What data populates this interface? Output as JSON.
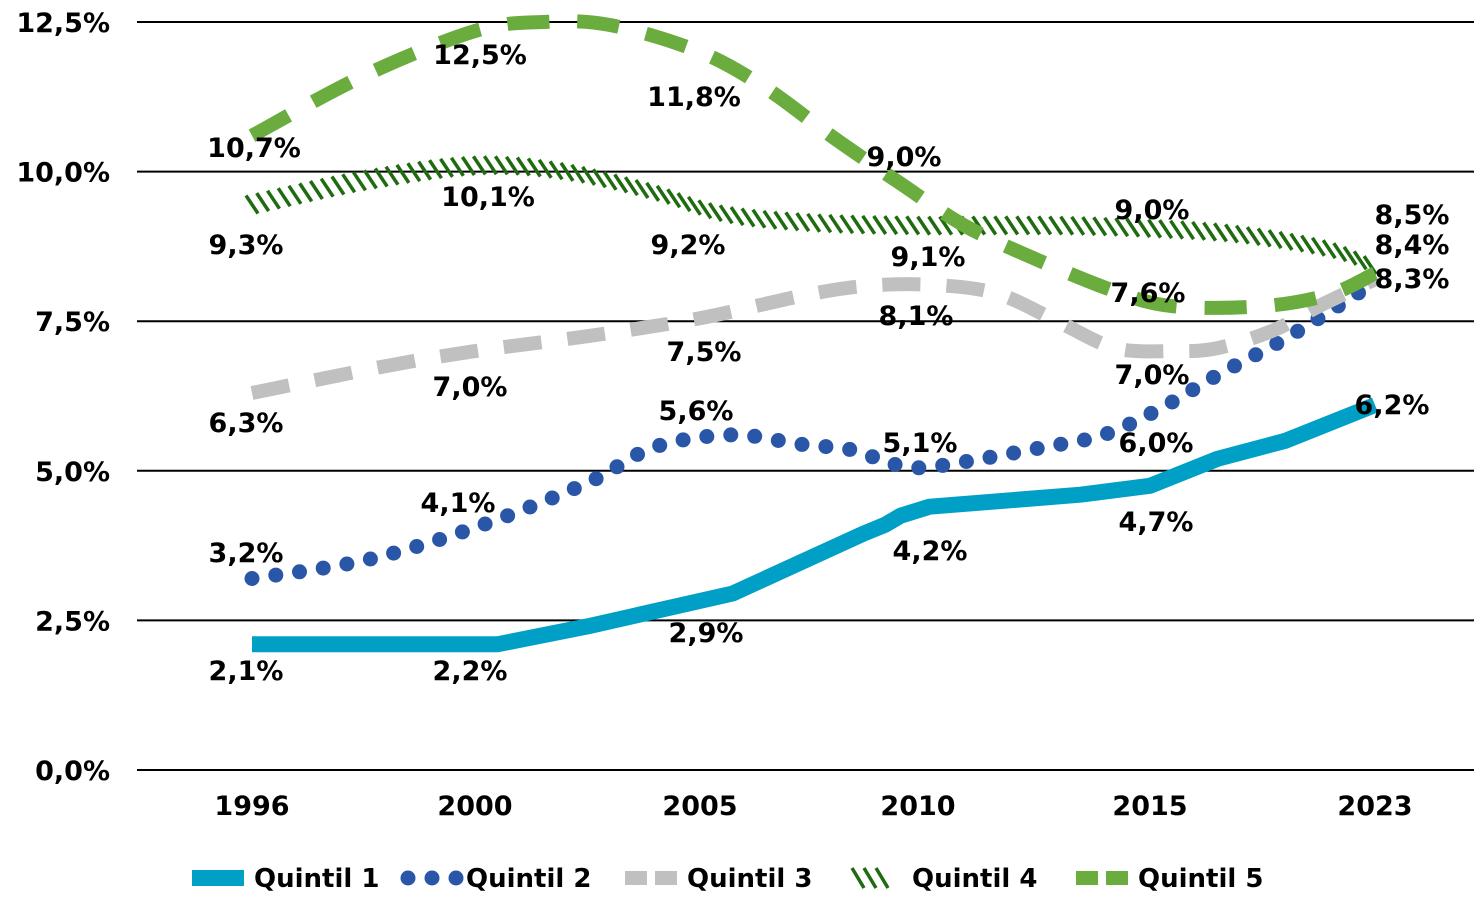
{
  "chart_data": {
    "type": "line",
    "title": "",
    "xlabel": "",
    "ylabel": "",
    "categories": [
      "1996",
      "2000",
      "2005",
      "2010",
      "2015",
      "2023"
    ],
    "ylim": [
      0,
      12.5
    ],
    "yticks": [
      "0,0%",
      "2,5%",
      "5,0%",
      "7,5%",
      "10,0%",
      "12,5%"
    ],
    "ytick_values": [
      0,
      2.5,
      5,
      7.5,
      10,
      12.5
    ],
    "grid": true,
    "legend_position": "bottom",
    "series": [
      {
        "name": "Quintil 1",
        "style": "solid",
        "color": "#00A0C6",
        "values": [
          2.1,
          2.2,
          2.9,
          4.2,
          4.7,
          6.2
        ],
        "labels": [
          "2,1%",
          "2,2%",
          "2,9%",
          "4,2%",
          "4,7%",
          "6,2%"
        ],
        "shape": [
          [
            0,
            2.1
          ],
          [
            1.1,
            2.1
          ],
          [
            1.5,
            2.4
          ],
          [
            2.15,
            2.95
          ],
          [
            2.75,
            3.95
          ],
          [
            2.85,
            4.1
          ],
          [
            2.92,
            4.25
          ],
          [
            3.05,
            4.4
          ],
          [
            3.7,
            4.6
          ],
          [
            4.0,
            4.75
          ],
          [
            4.3,
            5.2
          ],
          [
            4.6,
            5.5
          ],
          [
            5.0,
            6.1
          ]
        ],
        "label_offsets": [
          [
            0,
            1
          ],
          [
            0,
            1
          ],
          [
            0,
            1
          ],
          [
            0,
            1
          ],
          [
            0,
            1
          ],
          [
            0.2,
            0
          ]
        ]
      },
      {
        "name": "Quintil 2",
        "style": "dotted",
        "color": "#2A56A8",
        "values": [
          3.2,
          4.1,
          5.6,
          5.1,
          6.0,
          8.3
        ],
        "labels": [
          "3,2%",
          "4,1%",
          "5,6%",
          "5,1%",
          "6,0%",
          "8,3%"
        ],
        "shape": [
          [
            0,
            3.2
          ],
          [
            0.5,
            3.5
          ],
          [
            1.0,
            4.05
          ],
          [
            1.5,
            4.8
          ],
          [
            1.8,
            5.4
          ],
          [
            2.15,
            5.6
          ],
          [
            2.45,
            5.45
          ],
          [
            2.7,
            5.35
          ],
          [
            2.85,
            5.15
          ],
          [
            3.0,
            5.05
          ],
          [
            3.2,
            5.15
          ],
          [
            3.55,
            5.4
          ],
          [
            3.8,
            5.6
          ],
          [
            4.05,
            6.05
          ],
          [
            4.3,
            6.6
          ],
          [
            4.55,
            7.1
          ],
          [
            4.75,
            7.55
          ],
          [
            5.0,
            8.15
          ]
        ],
        "label_offsets": [
          [
            0,
            -1
          ],
          [
            0,
            -1
          ],
          [
            0,
            -1
          ],
          [
            0,
            -1
          ],
          [
            0,
            1
          ],
          [
            0.2,
            0
          ]
        ]
      },
      {
        "name": "Quintil 3",
        "style": "dashed",
        "color": "#C0C0C0",
        "values": [
          6.3,
          7.0,
          7.5,
          8.1,
          7.0,
          8.4
        ],
        "labels": [
          "6,3%",
          "7,0%",
          "7,5%",
          "8,1%",
          "7,0%",
          "8,4%"
        ],
        "shape": [
          [
            0,
            6.3
          ],
          [
            0.6,
            6.75
          ],
          [
            1.0,
            7.0
          ],
          [
            1.5,
            7.25
          ],
          [
            2.0,
            7.55
          ],
          [
            2.5,
            7.95
          ],
          [
            2.8,
            8.1
          ],
          [
            3.1,
            8.1
          ],
          [
            3.35,
            7.95
          ],
          [
            3.6,
            7.5
          ],
          [
            3.85,
            7.05
          ],
          [
            4.1,
            7.0
          ],
          [
            4.3,
            7.05
          ],
          [
            4.55,
            7.35
          ],
          [
            4.75,
            7.75
          ],
          [
            5.0,
            8.2
          ]
        ],
        "label_offsets": [
          [
            0,
            1
          ],
          [
            0,
            1
          ],
          [
            0,
            1
          ],
          [
            0,
            1
          ],
          [
            0,
            1
          ],
          [
            0.2,
            0
          ]
        ]
      },
      {
        "name": "Quintil 4",
        "style": "hatched",
        "color": "#1F6B0F",
        "values": [
          9.3,
          10.1,
          9.2,
          9.1,
          9.0,
          8.5
        ],
        "labels": [
          "9,3%",
          "10,1%",
          "9,2%",
          "9,1%",
          "9,0%",
          "8,5%"
        ],
        "shape": [
          [
            0,
            9.45
          ],
          [
            0.5,
            9.85
          ],
          [
            1.0,
            10.1
          ],
          [
            1.4,
            10.0
          ],
          [
            1.8,
            9.65
          ],
          [
            2.1,
            9.3
          ],
          [
            2.5,
            9.15
          ],
          [
            3.0,
            9.1
          ],
          [
            3.6,
            9.1
          ],
          [
            4.0,
            9.05
          ],
          [
            4.4,
            8.95
          ],
          [
            4.8,
            8.7
          ],
          [
            5.0,
            8.4
          ]
        ],
        "label_offsets": [
          [
            0,
            1
          ],
          [
            0,
            1
          ],
          [
            0,
            1
          ],
          [
            0,
            1
          ],
          [
            0,
            -1
          ],
          [
            0.2,
            0
          ]
        ]
      },
      {
        "name": "Quintil 5",
        "style": "dashed",
        "color": "#6AAC3E",
        "values": [
          10.7,
          12.5,
          11.8,
          9.0,
          7.6,
          8.5
        ],
        "labels": [
          "10,7%",
          "12,5%",
          "11,8%",
          "9,0%",
          "7,6%",
          "8,5%"
        ],
        "shape": [
          [
            0,
            10.6
          ],
          [
            0.5,
            11.6
          ],
          [
            1.0,
            12.35
          ],
          [
            1.3,
            12.5
          ],
          [
            1.6,
            12.45
          ],
          [
            2.0,
            12.0
          ],
          [
            2.3,
            11.4
          ],
          [
            2.6,
            10.6
          ],
          [
            2.9,
            9.85
          ],
          [
            3.2,
            9.1
          ],
          [
            3.5,
            8.55
          ],
          [
            3.85,
            8.0
          ],
          [
            4.1,
            7.75
          ],
          [
            4.5,
            7.75
          ],
          [
            4.8,
            7.95
          ],
          [
            5.0,
            8.3
          ]
        ],
        "label_offsets": [
          [
            0,
            1
          ],
          [
            0,
            1
          ],
          [
            0,
            1
          ],
          [
            0,
            -1
          ],
          [
            0,
            -1
          ],
          [
            0.2,
            0
          ]
        ]
      }
    ],
    "legend": [
      {
        "label": "Quintil 1",
        "style": "solid",
        "color": "#00A0C6"
      },
      {
        "label": "Quintil 2",
        "style": "dotted",
        "color": "#2A56A8"
      },
      {
        "label": "Quintil 3",
        "style": "dashed",
        "color": "#C0C0C0"
      },
      {
        "label": "Quintil 4",
        "style": "hatched",
        "color": "#1F6B0F"
      },
      {
        "label": "Quintil 5",
        "style": "dashed",
        "color": "#6AAC3E"
      }
    ]
  }
}
